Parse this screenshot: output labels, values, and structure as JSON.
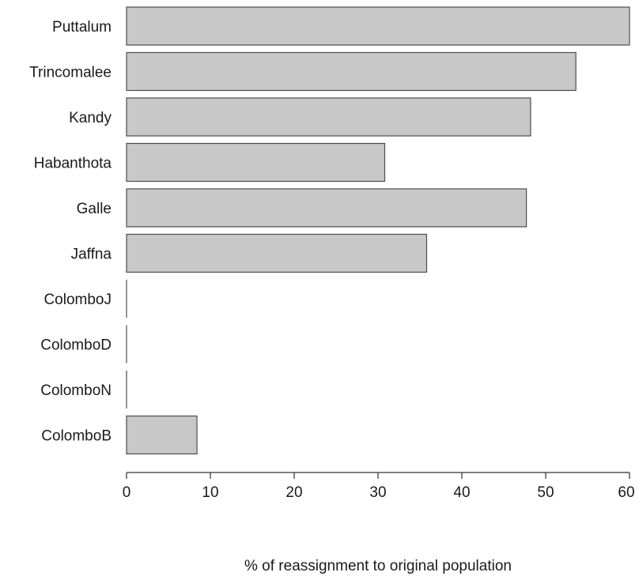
{
  "chart_data": {
    "type": "bar",
    "orientation": "horizontal",
    "categories": [
      "Puttalum",
      "Trincomalee",
      "Kandy",
      "Habanthota",
      "Galle",
      "Jaffna",
      "ColomboJ",
      "ColomboD",
      "ColomboN",
      "ColomboB"
    ],
    "values": [
      60,
      53.6,
      48.2,
      30.8,
      47.7,
      35.8,
      0,
      0,
      0,
      8.4
    ],
    "xlabel": "% of reassignment to original population",
    "ylabel": "",
    "xlim": [
      0,
      60
    ],
    "xticks": [
      0,
      10,
      20,
      30,
      40,
      50,
      60
    ],
    "grid": false,
    "bar_color": "#c8c8c8",
    "bar_edge_color": "#4d4d4d"
  }
}
